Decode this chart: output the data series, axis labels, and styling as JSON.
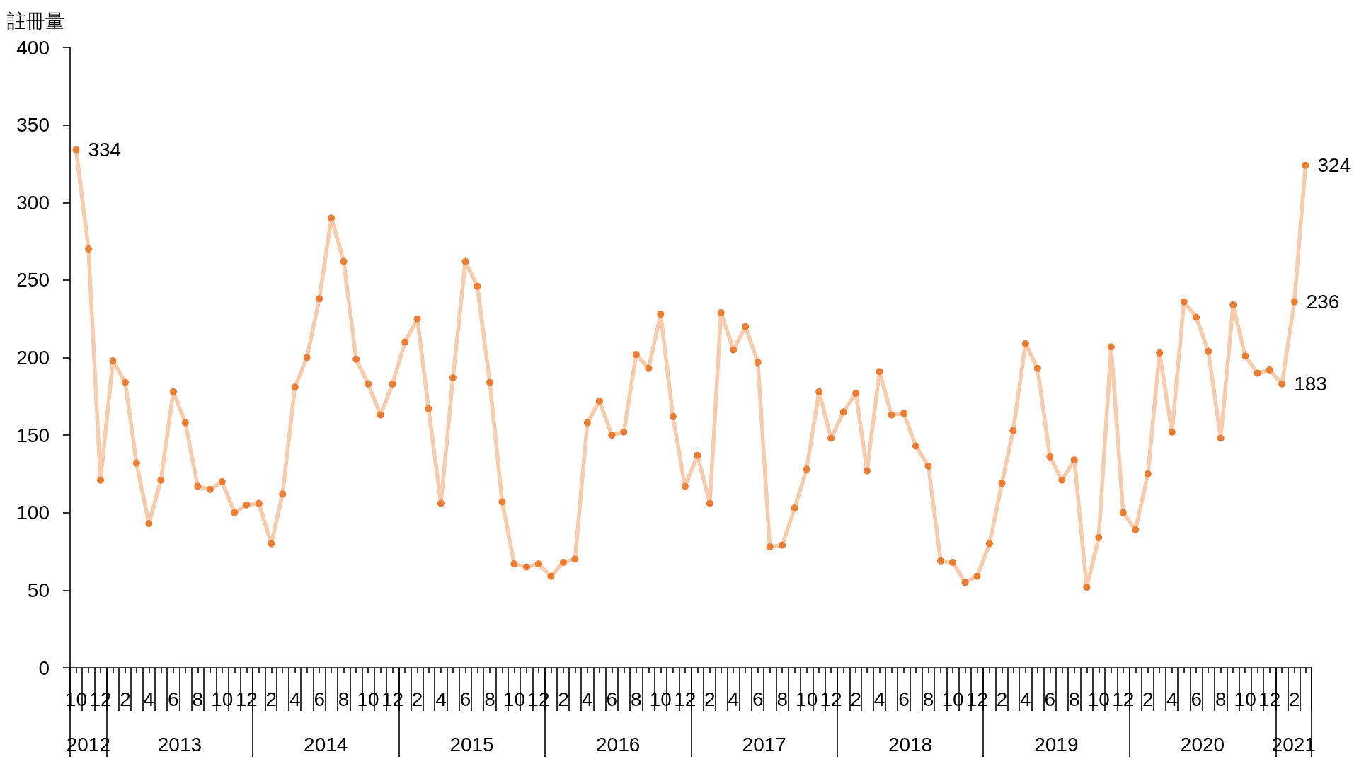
{
  "chart_data": {
    "type": "line",
    "ylabel": "註冊量",
    "x": [
      "2012-10",
      "2012-11",
      "2012-12",
      "2013-01",
      "2013-02",
      "2013-03",
      "2013-04",
      "2013-05",
      "2013-06",
      "2013-07",
      "2013-08",
      "2013-09",
      "2013-10",
      "2013-11",
      "2013-12",
      "2014-01",
      "2014-02",
      "2014-03",
      "2014-04",
      "2014-05",
      "2014-06",
      "2014-07",
      "2014-08",
      "2014-09",
      "2014-10",
      "2014-11",
      "2014-12",
      "2015-01",
      "2015-02",
      "2015-03",
      "2015-04",
      "2015-05",
      "2015-06",
      "2015-07",
      "2015-08",
      "2015-09",
      "2015-10",
      "2015-11",
      "2015-12",
      "2016-01",
      "2016-02",
      "2016-03",
      "2016-04",
      "2016-05",
      "2016-06",
      "2016-07",
      "2016-08",
      "2016-09",
      "2016-10",
      "2016-11",
      "2016-12",
      "2017-01",
      "2017-02",
      "2017-03",
      "2017-04",
      "2017-05",
      "2017-06",
      "2017-07",
      "2017-08",
      "2017-09",
      "2017-10",
      "2017-11",
      "2017-12",
      "2018-01",
      "2018-02",
      "2018-03",
      "2018-04",
      "2018-05",
      "2018-06",
      "2018-07",
      "2018-08",
      "2018-09",
      "2018-10",
      "2018-11",
      "2018-12",
      "2019-01",
      "2019-02",
      "2019-03",
      "2019-04",
      "2019-05",
      "2019-06",
      "2019-07",
      "2019-08",
      "2019-09",
      "2019-10",
      "2019-11",
      "2019-12",
      "2020-01",
      "2020-02",
      "2020-03",
      "2020-04",
      "2020-05",
      "2020-06",
      "2020-07",
      "2020-08",
      "2020-09",
      "2020-10",
      "2020-11",
      "2020-12",
      "2021-01",
      "2021-02",
      "2021-03"
    ],
    "values": [
      334,
      270,
      121,
      198,
      184,
      132,
      93,
      121,
      178,
      158,
      117,
      115,
      120,
      100,
      105,
      106,
      80,
      112,
      181,
      200,
      238,
      290,
      262,
      199,
      183,
      163,
      183,
      210,
      225,
      167,
      106,
      187,
      262,
      246,
      184,
      107,
      67,
      65,
      67,
      59,
      68,
      70,
      158,
      172,
      150,
      152,
      202,
      193,
      228,
      162,
      117,
      137,
      106,
      229,
      205,
      220,
      197,
      78,
      79,
      103,
      128,
      178,
      148,
      165,
      177,
      127,
      191,
      163,
      164,
      143,
      130,
      69,
      68,
      55,
      59,
      80,
      119,
      153,
      209,
      193,
      136,
      121,
      134,
      52,
      84,
      207,
      100,
      89,
      125,
      203,
      152,
      236,
      226,
      204,
      148,
      234,
      201,
      190,
      192,
      183,
      236,
      324
    ],
    "color": "#f8cbad",
    "colors": [
      "#ed7d31",
      "#ed7d31",
      "#ed7d31",
      "#ed7d31",
      "#ed7d31",
      "#ed7d31",
      "#ed7d31",
      "#ed7d31",
      "#ed7d31",
      "#ed7d31",
      "#ed7d31",
      "#ed7d31",
      "#ed7d31",
      "#ed7d31",
      "#ed7d31",
      "#ed7d31",
      "#ed7d31",
      "#ed7d31",
      "#ed7d31",
      "#ed7d31",
      "#ed7d31",
      "#ed7d31",
      "#ed7d31",
      "#ed7d31",
      "#ed7d31",
      "#ed7d31",
      "#ed7d31",
      "#ed7d31",
      "#ed7d31",
      "#ed7d31",
      "#ed7d31",
      "#ed7d31",
      "#ed7d31",
      "#ed7d31",
      "#ed7d31",
      "#ed7d31",
      "#ed7d31",
      "#ed7d31",
      "#ed7d31",
      "#ed7d31",
      "#ed7d31",
      "#ed7d31",
      "#ed7d31",
      "#ed7d31",
      "#ed7d31",
      "#ed7d31",
      "#ed7d31",
      "#ed7d31",
      "#ed7d31",
      "#ed7d31",
      "#ed7d31",
      "#ed7d31",
      "#ed7d31",
      "#ed7d31",
      "#ed7d31",
      "#ed7d31",
      "#ed7d31",
      "#ed7d31",
      "#ed7d31",
      "#ed7d31",
      "#ed7d31",
      "#ed7d31",
      "#ed7d31",
      "#ed7d31",
      "#ed7d31",
      "#ed7d31",
      "#ed7d31",
      "#ed7d31",
      "#ed7d31",
      "#ed7d31",
      "#ed7d31",
      "#ed7d31",
      "#ed7d31",
      "#ed7d31",
      "#ed7d31",
      "#ed7d31",
      "#ed7d31",
      "#ed7d31",
      "#ed7d31",
      "#ed7d31",
      "#ed7d31",
      "#ed7d31",
      "#ed7d31",
      "#ed7d31",
      "#ed7d31",
      "#ed7d31",
      "#ed7d31",
      "#ed7d31",
      "#ed7d31",
      "#ed7d31",
      "#ed7d31",
      "#ed7d31",
      "#ed7d31",
      "#ed7d31",
      "#ed7d31",
      "#ed7d31",
      "#ed7d31",
      "#ed7d31",
      "#ed7d31",
      "#ed7d31",
      "#ed7d31",
      "#ed7d31"
    ],
    "value_labels": [
      "334",
      null,
      null,
      null,
      null,
      null,
      null,
      null,
      null,
      null,
      null,
      null,
      null,
      null,
      null,
      null,
      null,
      null,
      null,
      null,
      null,
      null,
      null,
      null,
      null,
      null,
      null,
      null,
      null,
      null,
      null,
      null,
      null,
      null,
      null,
      null,
      null,
      null,
      null,
      null,
      null,
      null,
      null,
      null,
      null,
      null,
      null,
      null,
      null,
      null,
      null,
      null,
      null,
      null,
      null,
      null,
      null,
      null,
      null,
      null,
      null,
      null,
      null,
      null,
      null,
      null,
      null,
      null,
      null,
      null,
      null,
      null,
      null,
      null,
      null,
      null,
      null,
      null,
      null,
      null,
      null,
      null,
      null,
      null,
      null,
      null,
      null,
      null,
      null,
      null,
      null,
      null,
      null,
      null,
      null,
      null,
      null,
      null,
      null,
      "183",
      "236",
      "324"
    ],
    "xlim": [
      "2012-09-16",
      "2021-03-16"
    ],
    "xticks": [
      {
        "value": "2012-10",
        "label": "10"
      },
      {
        "value": "2012-11",
        "label": null
      },
      {
        "value": "2012-12",
        "label": "12"
      },
      {
        "value": "2013-01",
        "label": null
      },
      {
        "value": "2013-02",
        "label": "2"
      },
      {
        "value": "2013-03",
        "label": null
      },
      {
        "value": "2013-04",
        "label": "4"
      },
      {
        "value": "2013-05",
        "label": null
      },
      {
        "value": "2013-06",
        "label": "6"
      },
      {
        "value": "2013-07",
        "label": null
      },
      {
        "value": "2013-08",
        "label": "8"
      },
      {
        "value": "2013-09",
        "label": null
      },
      {
        "value": "2013-10",
        "label": "10"
      },
      {
        "value": "2013-11",
        "label": null
      },
      {
        "value": "2013-12",
        "label": "12"
      },
      {
        "value": "2014-01",
        "label": null
      },
      {
        "value": "2014-02",
        "label": "2"
      },
      {
        "value": "2014-03",
        "label": null
      },
      {
        "value": "2014-04",
        "label": "4"
      },
      {
        "value": "2014-05",
        "label": null
      },
      {
        "value": "2014-06",
        "label": "6"
      },
      {
        "value": "2014-07",
        "label": null
      },
      {
        "value": "2014-08",
        "label": "8"
      },
      {
        "value": "2014-09",
        "label": null
      },
      {
        "value": "2014-10",
        "label": "10"
      },
      {
        "value": "2014-11",
        "label": null
      },
      {
        "value": "2014-12",
        "label": "12"
      },
      {
        "value": "2015-01",
        "label": null
      },
      {
        "value": "2015-02",
        "label": "2"
      },
      {
        "value": "2015-03",
        "label": null
      },
      {
        "value": "2015-04",
        "label": "4"
      },
      {
        "value": "2015-05",
        "label": null
      },
      {
        "value": "2015-06",
        "label": "6"
      },
      {
        "value": "2015-07",
        "label": null
      },
      {
        "value": "2015-08",
        "label": "8"
      },
      {
        "value": "2015-09",
        "label": null
      },
      {
        "value": "2015-10",
        "label": "10"
      },
      {
        "value": "2015-11",
        "label": null
      },
      {
        "value": "2015-12",
        "label": "12"
      },
      {
        "value": "2016-01",
        "label": null
      },
      {
        "value": "2016-02",
        "label": "2"
      },
      {
        "value": "2016-03",
        "label": null
      },
      {
        "value": "2016-04",
        "label": "4"
      },
      {
        "value": "2016-05",
        "label": null
      },
      {
        "value": "2016-06",
        "label": "6"
      },
      {
        "value": "2016-07",
        "label": null
      },
      {
        "value": "2016-08",
        "label": "8"
      },
      {
        "value": "2016-09",
        "label": null
      },
      {
        "value": "2016-10",
        "label": "10"
      },
      {
        "value": "2016-11",
        "label": null
      },
      {
        "value": "2016-12",
        "label": "12"
      },
      {
        "value": "2017-01",
        "label": null
      },
      {
        "value": "2017-02",
        "label": "2"
      },
      {
        "value": "2017-03",
        "label": null
      },
      {
        "value": "2017-04",
        "label": "4"
      },
      {
        "value": "2017-05",
        "label": null
      },
      {
        "value": "2017-06",
        "label": "6"
      },
      {
        "value": "2017-07",
        "label": null
      },
      {
        "value": "2017-08",
        "label": "8"
      },
      {
        "value": "2017-09",
        "label": null
      },
      {
        "value": "2017-10",
        "label": "10"
      },
      {
        "value": "2017-11",
        "label": null
      },
      {
        "value": "2017-12",
        "label": "12"
      },
      {
        "value": "2018-01",
        "label": null
      },
      {
        "value": "2018-02",
        "label": "2"
      },
      {
        "value": "2018-03",
        "label": null
      },
      {
        "value": "2018-04",
        "label": "4"
      },
      {
        "value": "2018-05",
        "label": null
      },
      {
        "value": "2018-06",
        "label": "6"
      },
      {
        "value": "2018-07",
        "label": null
      },
      {
        "value": "2018-08",
        "label": "8"
      },
      {
        "value": "2018-09",
        "label": null
      },
      {
        "value": "2018-10",
        "label": "10"
      },
      {
        "value": "2018-11",
        "label": null
      },
      {
        "value": "2018-12",
        "label": "12"
      },
      {
        "value": "2019-01",
        "label": null
      },
      {
        "value": "2019-02",
        "label": "2"
      },
      {
        "value": "2019-03",
        "label": null
      },
      {
        "value": "2019-04",
        "label": "4"
      },
      {
        "value": "2019-05",
        "label": null
      },
      {
        "value": "2019-06",
        "label": "6"
      },
      {
        "value": "2019-07",
        "label": null
      },
      {
        "value": "2019-08",
        "label": "8"
      },
      {
        "value": "2019-09",
        "label": null
      },
      {
        "value": "2019-10",
        "label": "10"
      },
      {
        "value": "2019-11",
        "label": null
      },
      {
        "value": "2019-12",
        "label": "12"
      },
      {
        "value": "2020-01",
        "label": null
      },
      {
        "value": "2020-02",
        "label": "2"
      },
      {
        "value": "2020-03",
        "label": null
      },
      {
        "value": "2020-04",
        "label": "4"
      },
      {
        "value": "2020-05",
        "label": null
      },
      {
        "value": "2020-06",
        "label": "6"
      },
      {
        "value": "2020-07",
        "label": null
      },
      {
        "value": "2020-08",
        "label": "8"
      },
      {
        "value": "2020-09",
        "label": null
      },
      {
        "value": "2020-10",
        "label": "10"
      },
      {
        "value": "2020-11",
        "label": null
      },
      {
        "value": "2020-12",
        "label": "12"
      },
      {
        "value": "2021-01",
        "label": null
      },
      {
        "value": "2021-02",
        "label": "2"
      },
      {
        "value": "2021-03",
        "label": null
      }
    ],
    "ylim": [
      0,
      400
    ],
    "yticks": [
      0,
      50,
      100,
      150,
      200,
      250,
      300,
      350,
      400
    ],
    "marker": "circle",
    "line_style": "solid",
    "annotations": [
      "2012",
      "2013",
      "2014",
      "2015",
      "2016",
      "2017",
      "2018",
      "2019",
      "2020",
      "2021"
    ]
  }
}
